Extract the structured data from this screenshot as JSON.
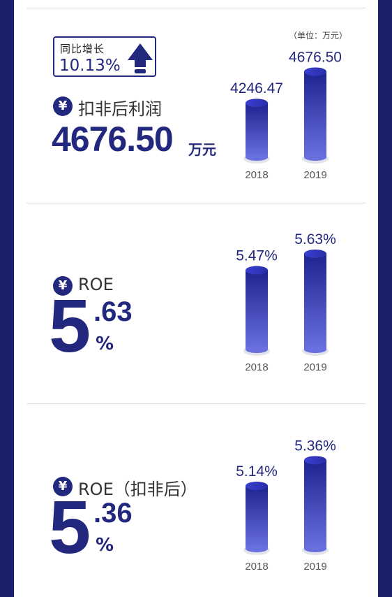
{
  "colors": {
    "accent": "#23287f",
    "bar_dark": "#1f2390",
    "bar_light": "#6a6fe0",
    "frame": "#1c1f6b"
  },
  "sections": [
    {
      "title": "扣非后利润",
      "big_value": "4676.50",
      "big_unit": "万元",
      "growth_label": "同比增长",
      "growth_value": "10.13%",
      "unit_note": "（单位：万元）"
    },
    {
      "title": "ROE",
      "big_digit": "5",
      "big_decimal": ".63",
      "big_unit": "%"
    },
    {
      "title": "ROE（扣非后）",
      "big_digit": "5",
      "big_decimal": ".36",
      "big_unit": "%"
    }
  ],
  "chart_data": [
    {
      "type": "bar",
      "categories": [
        "2018",
        "2019"
      ],
      "values": [
        4246.47,
        4676.5
      ],
      "value_labels": [
        "4246.47",
        "4676.50"
      ],
      "title": "",
      "xlabel": "",
      "ylabel": "",
      "ylim": [
        3500,
        4700
      ]
    },
    {
      "type": "bar",
      "categories": [
        "2018",
        "2019"
      ],
      "values": [
        5.47,
        5.63
      ],
      "value_labels": [
        "5.47%",
        "5.63%"
      ],
      "title": "",
      "xlabel": "",
      "ylabel": "",
      "ylim": [
        4.7,
        5.65
      ]
    },
    {
      "type": "bar",
      "categories": [
        "2018",
        "2019"
      ],
      "values": [
        5.14,
        5.36
      ],
      "value_labels": [
        "5.14%",
        "5.36%"
      ],
      "title": "",
      "xlabel": "",
      "ylabel": "",
      "ylim": [
        4.6,
        5.38
      ]
    }
  ]
}
